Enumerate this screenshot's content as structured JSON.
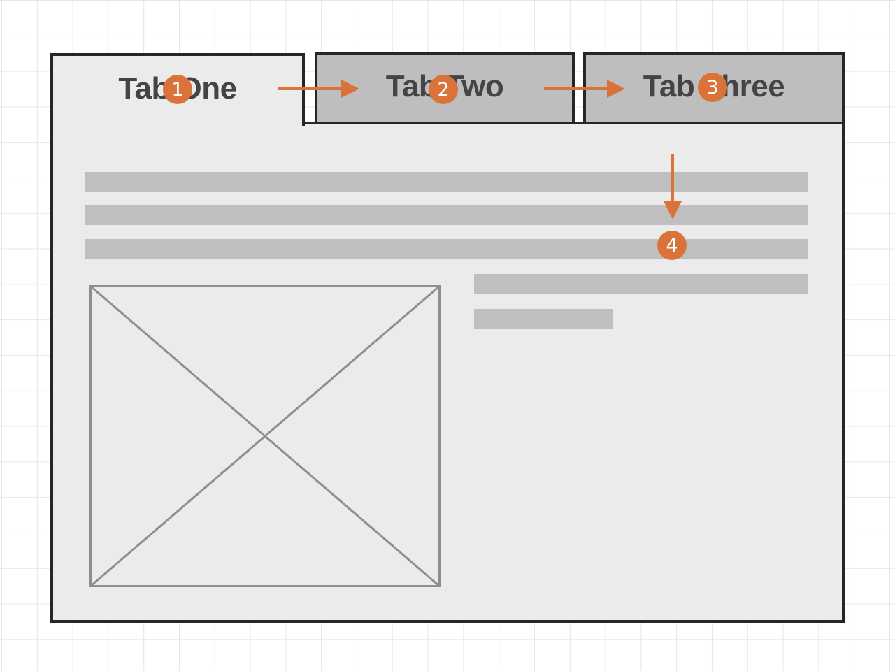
{
  "tabs": [
    {
      "label": "Tab One",
      "active": true
    },
    {
      "label": "Tab Two",
      "active": false
    },
    {
      "label": "Tab Three",
      "active": false
    }
  ],
  "markers": [
    "1",
    "2",
    "3",
    "4"
  ],
  "colors": {
    "accent": "#d9733a",
    "border": "#262626",
    "panel": "#ebebeb",
    "inactive_tab": "#bebebe",
    "placeholder_bar": "#bfbfbf"
  },
  "icons": {
    "image_placeholder": "image-placeholder-icon",
    "arrow": "arrow-icon"
  }
}
